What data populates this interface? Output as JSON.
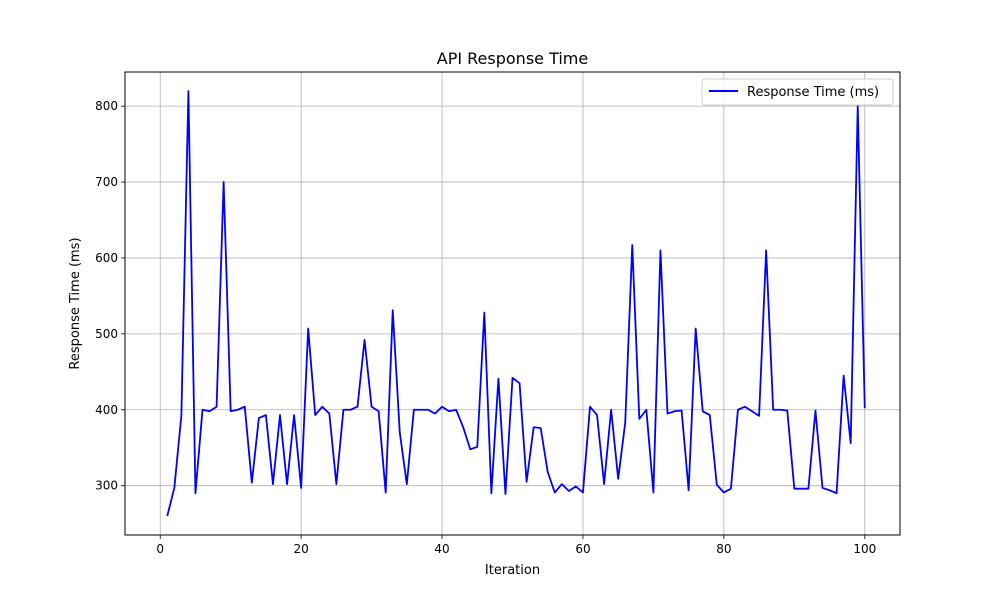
{
  "chart_data": {
    "type": "line",
    "title": "API Response Time",
    "xlabel": "Iteration",
    "ylabel": "Response Time (ms)",
    "xlim": [
      -5,
      105
    ],
    "ylim": [
      235,
      845
    ],
    "xticks": [
      0,
      20,
      40,
      60,
      80,
      100
    ],
    "yticks": [
      300,
      400,
      500,
      600,
      700,
      800
    ],
    "grid": true,
    "legend": "top-right",
    "series": [
      {
        "name": "Response Time (ms)",
        "color": "#0000ff",
        "x": [
          1,
          2,
          3,
          4,
          5,
          6,
          7,
          8,
          9,
          10,
          11,
          12,
          13,
          14,
          15,
          16,
          17,
          18,
          19,
          20,
          21,
          22,
          23,
          24,
          25,
          26,
          27,
          28,
          29,
          30,
          31,
          32,
          33,
          34,
          35,
          36,
          37,
          38,
          39,
          40,
          41,
          42,
          43,
          44,
          45,
          46,
          47,
          48,
          49,
          50,
          51,
          52,
          53,
          54,
          55,
          56,
          57,
          58,
          59,
          60,
          61,
          62,
          63,
          64,
          65,
          66,
          67,
          68,
          69,
          70,
          71,
          72,
          73,
          74,
          75,
          76,
          77,
          78,
          79,
          80,
          81,
          82,
          83,
          84,
          85,
          86,
          87,
          88,
          89,
          90,
          91,
          92,
          93,
          94,
          95,
          96,
          97,
          98,
          99,
          100
        ],
        "values": [
          260,
          297,
          392,
          820,
          290,
          400,
          398,
          404,
          700,
          398,
          400,
          404,
          304,
          389,
          393,
          302,
          393,
          302,
          393,
          297,
          507,
          393,
          404,
          395,
          302,
          400,
          400,
          404,
          492,
          404,
          398,
          291,
          531,
          370,
          302,
          400,
          400,
          400,
          395,
          404,
          398,
          400,
          377,
          348,
          351,
          528,
          290,
          441,
          289,
          442,
          435,
          305,
          377,
          376,
          318,
          291,
          302,
          293,
          299,
          291,
          404,
          393,
          302,
          400,
          309,
          383,
          617,
          388,
          400,
          291,
          610,
          395,
          398,
          399,
          294,
          507,
          398,
          393,
          301,
          291,
          296,
          400,
          404,
          398,
          392,
          610,
          400,
          400,
          399,
          296,
          296,
          296,
          399,
          297,
          294,
          290,
          445,
          356,
          800,
          402
        ]
      }
    ]
  }
}
